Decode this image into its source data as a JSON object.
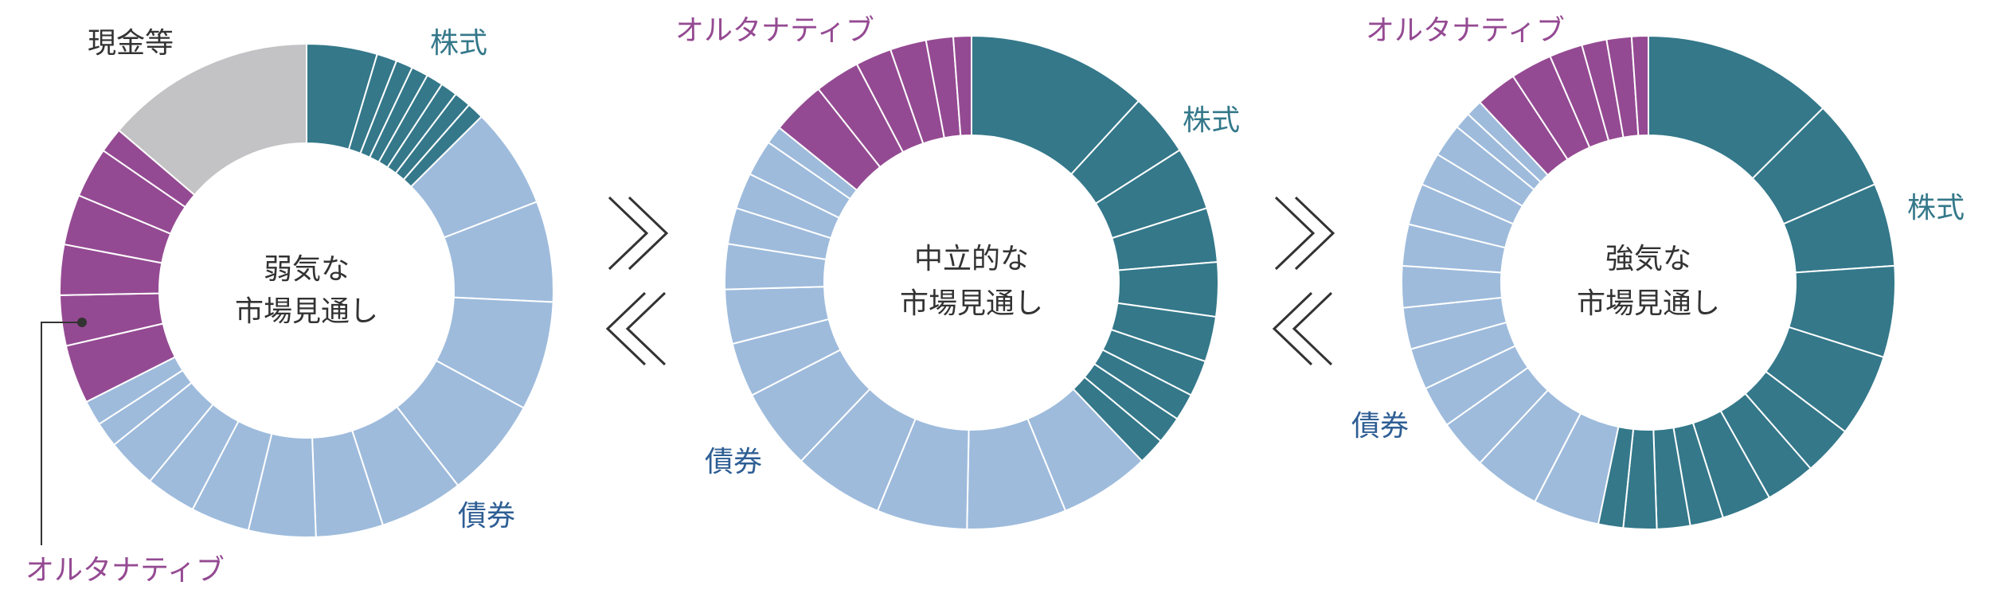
{
  "colors": {
    "equity": "#34788A",
    "bond": "#9EBBDC",
    "alternative": "#944A92",
    "cash": "#C3C3C5",
    "equity_label": "#34788A",
    "bond_label": "#2E5E94",
    "alternative_label": "#944A92",
    "cash_label": "#333333",
    "center_text": "#333333",
    "arrow": "#333333",
    "separator": "#ffffff"
  },
  "chart_data": [
    {
      "type": "pie",
      "center_label": [
        "弱気な",
        "市場見通し"
      ],
      "labels": {
        "equity": "株式",
        "bond": "債券",
        "alternative": "オルタナティブ",
        "cash": "現金等"
      },
      "segments": [
        {
          "category": "equity",
          "values": [
            4.2,
            1.2,
            1.0,
            1.0,
            1.0,
            1.0,
            1.0,
            1.0
          ]
        },
        {
          "category": "bond",
          "values": [
            6.0,
            6.0,
            6.5,
            6.0,
            5.0,
            4.0,
            4.0,
            3.5,
            3.0,
            3.0,
            1.5,
            1.5
          ]
        },
        {
          "category": "alternative",
          "values": [
            3.5,
            3.0,
            3.0,
            3.0,
            3.0,
            1.5
          ]
        },
        {
          "category": "cash",
          "values": [
            12.5
          ]
        }
      ]
    },
    {
      "type": "pie",
      "center_label": [
        "中立的な",
        "市場見通し"
      ],
      "labels": {
        "equity": "株式",
        "bond": "債券",
        "alternative": "オルタナティブ"
      },
      "segments": [
        {
          "category": "equity",
          "values": [
            10.0,
            3.5,
            3.5,
            3.0,
            3.0,
            2.5,
            2.0,
            1.5,
            1.5,
            1.5
          ]
        },
        {
          "category": "bond",
          "values": [
            5.0,
            5.5,
            5.0,
            5.0,
            4.5,
            3.0,
            3.0,
            2.5,
            2.0,
            2.0,
            2.0,
            1.0
          ]
        },
        {
          "category": "alternative",
          "values": [
            3.0,
            2.5,
            2.0,
            2.0,
            1.5,
            1.0
          ]
        }
      ]
    },
    {
      "type": "pie",
      "center_label": [
        "強気な",
        "市場見通し"
      ],
      "labels": {
        "equity": "株式",
        "bond": "債券",
        "alternative": "オルタナティブ"
      },
      "segments": [
        {
          "category": "equity",
          "values": [
            11.5,
            5.5,
            5.0,
            5.5,
            5.0,
            3.0,
            3.0,
            3.0,
            2.0,
            2.0,
            2.0,
            1.5
          ]
        },
        {
          "category": "bond",
          "values": [
            4.0,
            4.0,
            3.0,
            2.5,
            2.5,
            2.5,
            2.5,
            2.5,
            2.5,
            2.0,
            2.0,
            1.0,
            1.0
          ]
        },
        {
          "category": "alternative",
          "values": [
            2.5,
            2.5,
            2.0,
            1.5,
            1.5,
            1.0
          ]
        }
      ]
    }
  ]
}
